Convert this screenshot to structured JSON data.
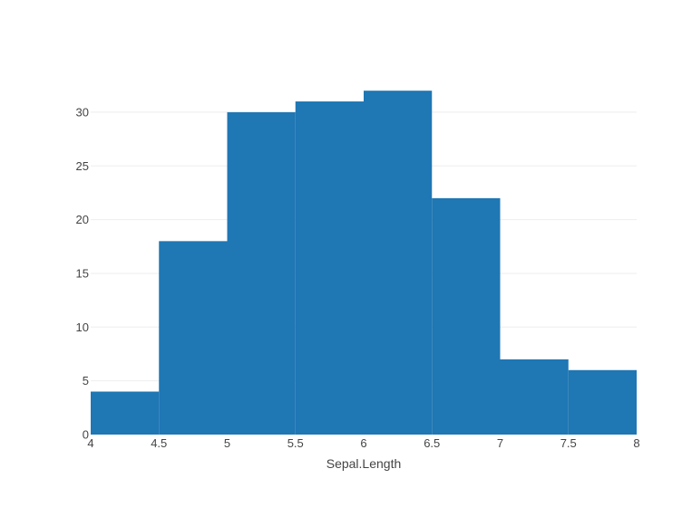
{
  "chart_data": {
    "type": "bar",
    "title": "",
    "xlabel": "Sepal.Length",
    "ylabel": "",
    "bins": [
      {
        "start": 4.0,
        "end": 4.5,
        "count": 4
      },
      {
        "start": 4.5,
        "end": 5.0,
        "count": 18
      },
      {
        "start": 5.0,
        "end": 5.5,
        "count": 30
      },
      {
        "start": 5.5,
        "end": 6.0,
        "count": 31
      },
      {
        "start": 6.0,
        "end": 6.5,
        "count": 32
      },
      {
        "start": 6.5,
        "end": 7.0,
        "count": 22
      },
      {
        "start": 7.0,
        "end": 7.5,
        "count": 7
      },
      {
        "start": 7.5,
        "end": 8.0,
        "count": 6
      }
    ],
    "xlim": [
      4,
      8
    ],
    "ylim": [
      0,
      33.7
    ],
    "xticks": [
      "4",
      "4.5",
      "5",
      "5.5",
      "6",
      "6.5",
      "7",
      "7.5",
      "8"
    ],
    "yticks": [
      "0",
      "5",
      "10",
      "15",
      "20",
      "25",
      "30"
    ],
    "grid": "horizontal",
    "bar_color": "#1f77b4",
    "grid_color": "#eeeeee"
  }
}
